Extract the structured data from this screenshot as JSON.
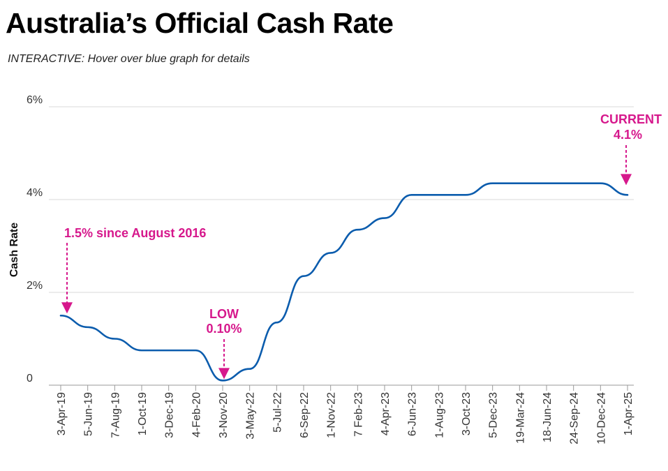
{
  "title": "Australia’s Official Cash Rate",
  "subtitle": "INTERACTIVE: Hover over blue graph for details",
  "colors": {
    "line": "#0b5cad",
    "annotation": "#d6188c",
    "grid": "#d9d9d9",
    "axis": "#999999"
  },
  "chart_data": {
    "type": "line",
    "title": "Australia’s Official Cash Rate",
    "subtitle": "INTERACTIVE: Hover over blue graph for details",
    "xlabel": "",
    "ylabel": "Cash Rate",
    "ylim": [
      0,
      6
    ],
    "grid": true,
    "y_ticks": [
      {
        "value": 0,
        "label": "0"
      },
      {
        "value": 2,
        "label": "2%"
      },
      {
        "value": 4,
        "label": "4%"
      },
      {
        "value": 6,
        "label": "6%"
      }
    ],
    "categories": [
      "3-Apr-19",
      "5-Jun-19",
      "7-Aug-19",
      "1-Oct-19",
      "3-Dec-19",
      "4-Feb-20",
      "3-Nov-20",
      "3-May-22",
      "5-Jul-22",
      "6-Sep-22",
      "1-Nov-22",
      "7 Feb-23",
      "4-Apr-23",
      "6-Jun-23",
      "1-Aug-23",
      "3-Oct-23",
      "5-Dec-23",
      "19-Mar-24",
      "18-Jun-24",
      "24-Sep-24",
      "10-Dec-24",
      "1-Apr-25"
    ],
    "series": [
      {
        "values": [
          1.5,
          1.25,
          1.0,
          0.75,
          0.75,
          0.75,
          0.1,
          0.35,
          1.35,
          2.35,
          2.85,
          3.35,
          3.6,
          4.1,
          4.1,
          4.1,
          4.35,
          4.35,
          4.35,
          4.35,
          4.35,
          4.1
        ]
      }
    ],
    "annotations": [
      {
        "label": "1.5% since August 2016",
        "category": "3-Apr-19",
        "value": 1.5
      },
      {
        "label": "LOW",
        "label2": "0.10%",
        "category": "3-Nov-20",
        "value": 0.1
      },
      {
        "label": "CURRENT",
        "label2": "4.1%",
        "category": "1-Apr-25",
        "value": 4.1
      }
    ]
  }
}
